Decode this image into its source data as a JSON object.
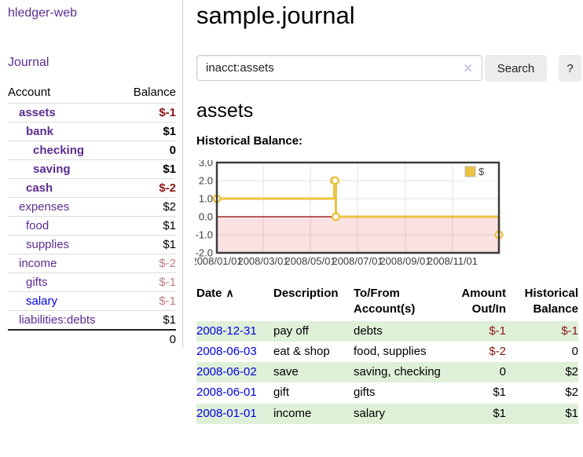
{
  "colors": {
    "link_purple": "#5c2d91",
    "link_blue": "#0000e0",
    "negative_strong": "#8b1717",
    "negative_pale": "#c07e7e",
    "row_stripe_green": "#dff0d8",
    "button_gray": "#ececec",
    "chart_line_gold": "#edc240",
    "chart_negative_pink": "#f9dada",
    "chart_zero_line": "#8b0000"
  },
  "sidebar": {
    "brand": "hledger-web",
    "nav_journal": "Journal",
    "accounts_headers": [
      "Account",
      "Balance"
    ],
    "accounts": [
      {
        "name": "assets",
        "depth": 1,
        "bold": true,
        "link_color": "purple",
        "balance": "$-1",
        "balance_style": "neg-strong"
      },
      {
        "name": "bank",
        "depth": 2,
        "bold": true,
        "link_color": "purple",
        "balance": "$1",
        "balance_style": ""
      },
      {
        "name": "checking",
        "depth": 3,
        "bold": true,
        "link_color": "purple",
        "balance": "0",
        "balance_style": ""
      },
      {
        "name": "saving",
        "depth": 3,
        "bold": true,
        "link_color": "purple",
        "balance": "$1",
        "balance_style": ""
      },
      {
        "name": "cash",
        "depth": 2,
        "bold": true,
        "link_color": "purple",
        "balance": "$-2",
        "balance_style": "neg-strong"
      },
      {
        "name": "expenses",
        "depth": 1,
        "bold": false,
        "link_color": "purple",
        "balance": "$2",
        "balance_style": ""
      },
      {
        "name": "food",
        "depth": 2,
        "bold": false,
        "link_color": "purple",
        "balance": "$1",
        "balance_style": ""
      },
      {
        "name": "supplies",
        "depth": 2,
        "bold": false,
        "link_color": "purple",
        "balance": "$1",
        "balance_style": ""
      },
      {
        "name": "income",
        "depth": 1,
        "bold": false,
        "link_color": "purple",
        "balance": "$-2",
        "balance_style": "neg-pale"
      },
      {
        "name": "gifts",
        "depth": 2,
        "bold": false,
        "link_color": "purple",
        "balance": "$-1",
        "balance_style": "neg-pale"
      },
      {
        "name": "salary",
        "depth": 2,
        "bold": false,
        "link_color": "blue",
        "balance": "$-1",
        "balance_style": "neg-pale"
      },
      {
        "name": "liabilities:debts",
        "depth": 1,
        "bold": false,
        "link_color": "purple",
        "balance": "$1",
        "balance_style": ""
      }
    ],
    "total": "0"
  },
  "header": {
    "title": "sample.journal"
  },
  "search": {
    "value": "inacct:assets",
    "clear_icon": "✕",
    "button_label": "Search",
    "help_label": "?"
  },
  "account_page": {
    "title": "assets",
    "chart_label": "Historical Balance:"
  },
  "chart_data": {
    "type": "line",
    "title": "Historical Balance",
    "step": true,
    "xrange": [
      "2008-01-01",
      "2008-12-31"
    ],
    "ylim": [
      -2,
      3
    ],
    "ytick_values": [
      3,
      2,
      1,
      0,
      -1,
      -2
    ],
    "yticks": [
      "3.0",
      "2.0",
      "1.0",
      "0.0",
      "-1.0",
      "-2.0"
    ],
    "xtick_dates": [
      "2008-01-01",
      "2008-03-01",
      "2008-05-01",
      "2008-07-01",
      "2008-09-01",
      "2008-11-01"
    ],
    "xticks": [
      "2008/01/01",
      "2008/03/01",
      "2008/05/01",
      "2008/07/01",
      "2008/09/01",
      "2008/11/01"
    ],
    "grid": true,
    "legend_position": "top-right",
    "series": [
      {
        "name": "$",
        "color": "#edc240",
        "points": [
          {
            "date": "2008-01-01",
            "value": 1
          },
          {
            "date": "2008-06-01",
            "value": 2
          },
          {
            "date": "2008-06-02",
            "value": 2
          },
          {
            "date": "2008-06-03",
            "value": 0
          },
          {
            "date": "2008-12-31",
            "value": -1
          }
        ]
      }
    ],
    "negative_fill": "rgba(230,60,60,0.15)",
    "zero_line_color": "#8b0000"
  },
  "register": {
    "headers": [
      "Date",
      "Description",
      "To/From Account(s)",
      "Amount Out/In",
      "Historical Balance"
    ],
    "sort_icon": "∧",
    "rows": [
      {
        "date": "2008-12-31",
        "description": "pay off",
        "accounts": "debts",
        "amount": "$-1",
        "amount_negative": true,
        "balance": "$-1",
        "balance_negative": true
      },
      {
        "date": "2008-06-03",
        "description": "eat & shop",
        "accounts": "food, supplies",
        "amount": "$-2",
        "amount_negative": true,
        "balance": "0",
        "balance_negative": false
      },
      {
        "date": "2008-06-02",
        "description": "save",
        "accounts": "saving, checking",
        "amount": "0",
        "amount_negative": false,
        "balance": "$2",
        "balance_negative": false
      },
      {
        "date": "2008-06-01",
        "description": "gift",
        "accounts": "gifts",
        "amount": "$1",
        "amount_negative": false,
        "balance": "$2",
        "balance_negative": false
      },
      {
        "date": "2008-01-01",
        "description": "income",
        "accounts": "salary",
        "amount": "$1",
        "amount_negative": false,
        "balance": "$1",
        "balance_negative": false
      }
    ]
  }
}
